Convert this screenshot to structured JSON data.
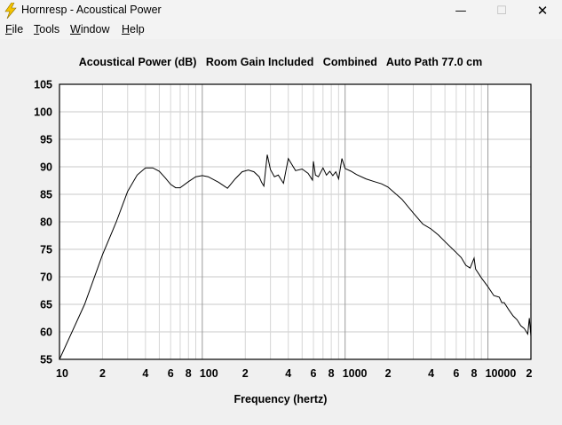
{
  "window": {
    "title": "Hornresp - Acoustical Power",
    "minimize_glyph": "—",
    "maximize_glyph": "☐",
    "close_glyph": "✕",
    "icon": "lightning-icon"
  },
  "menu": [
    {
      "label": "File",
      "accel": "F",
      "rest": "ile"
    },
    {
      "label": "Tools",
      "accel": "T",
      "rest": "ools"
    },
    {
      "label": "Window",
      "accel": "W",
      "rest": "indow"
    },
    {
      "label": "Help",
      "accel": "H",
      "rest": "elp"
    }
  ],
  "chart_data": {
    "type": "line",
    "title": "Acoustical Power (dB)   Room Gain Included   Combined   Auto Path 77.0 cm",
    "xlabel": "Frequency (hertz)",
    "ylabel": "",
    "x_scale": "log",
    "xlim": [
      10,
      20000
    ],
    "ylim": [
      55,
      105
    ],
    "y_ticks": [
      55,
      60,
      65,
      70,
      75,
      80,
      85,
      90,
      95,
      100,
      105
    ],
    "x_tick_labels": [
      {
        "value": 10,
        "label": "10"
      },
      {
        "value": 20,
        "label": "2"
      },
      {
        "value": 40,
        "label": "4"
      },
      {
        "value": 60,
        "label": "6"
      },
      {
        "value": 80,
        "label": "8"
      },
      {
        "value": 100,
        "label": "100"
      },
      {
        "value": 200,
        "label": "2"
      },
      {
        "value": 400,
        "label": "4"
      },
      {
        "value": 600,
        "label": "6"
      },
      {
        "value": 800,
        "label": "8"
      },
      {
        "value": 1000,
        "label": "1000"
      },
      {
        "value": 2000,
        "label": "2"
      },
      {
        "value": 4000,
        "label": "4"
      },
      {
        "value": 6000,
        "label": "6"
      },
      {
        "value": 8000,
        "label": "8"
      },
      {
        "value": 10000,
        "label": "10000"
      },
      {
        "value": 20000,
        "label": "2"
      }
    ],
    "grid": true,
    "series": [
      {
        "color": "#000000",
        "x": [
          10,
          15,
          20,
          25,
          30,
          35,
          40,
          45,
          50,
          55,
          60,
          65,
          70,
          80,
          90,
          100,
          110,
          130,
          150,
          170,
          190,
          210,
          230,
          250,
          260,
          270,
          285,
          300,
          320,
          340,
          370,
          400,
          450,
          500,
          550,
          590,
          600,
          620,
          650,
          700,
          740,
          780,
          820,
          860,
          900,
          950,
          1000,
          1100,
          1200,
          1400,
          1600,
          1800,
          2000,
          2500,
          3000,
          3500,
          4000,
          4500,
          5000,
          6000,
          6500,
          7000,
          7500,
          8000,
          8200,
          9000,
          10000,
          11000,
          12000,
          12500,
          13000,
          14000,
          15000,
          16000,
          17000,
          18000,
          19000,
          19500,
          20000
        ],
        "y": [
          55,
          65,
          74,
          80,
          85.5,
          88.5,
          89.8,
          89.8,
          89.2,
          88,
          86.8,
          86.2,
          86.2,
          87.3,
          88.2,
          88.4,
          88.2,
          87.2,
          86.1,
          87.8,
          89.1,
          89.4,
          89.1,
          88.2,
          87.2,
          86.5,
          92.2,
          89.5,
          88.2,
          88.5,
          87,
          91.5,
          89.3,
          89.6,
          88.8,
          87.6,
          91,
          88.5,
          88.2,
          89.8,
          88.5,
          89.2,
          88.4,
          89.1,
          87.8,
          91.5,
          89.7,
          89.2,
          88.6,
          87.8,
          87.3,
          86.9,
          86.3,
          84.1,
          81.6,
          79.6,
          78.7,
          77.6,
          76.4,
          74.4,
          73.5,
          72.1,
          71.6,
          73.4,
          71.4,
          69.8,
          68.2,
          66.6,
          66.3,
          65.3,
          65.3,
          64,
          62.9,
          62.2,
          61.1,
          60.6,
          59.6,
          62.5,
          59.2
        ]
      }
    ]
  }
}
